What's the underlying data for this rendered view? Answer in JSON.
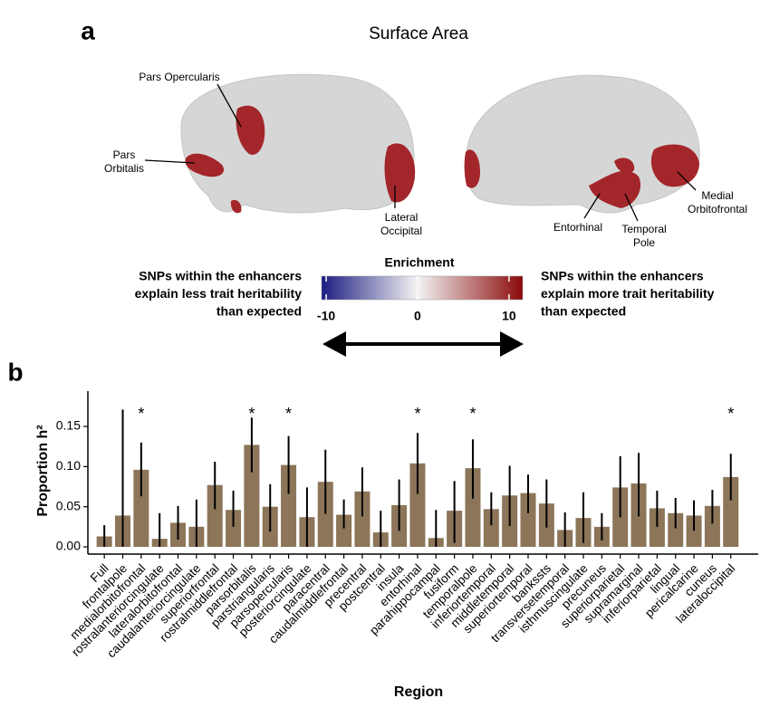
{
  "panel_a": {
    "panel_label": "a",
    "title": "Surface Area",
    "brain_labels": [
      [
        "Pars Opercularis"
      ],
      [
        "Pars",
        "Orbitalis"
      ],
      [
        "Lateral",
        "Occipital"
      ],
      [
        "Entorhinal"
      ],
      [
        "Temporal",
        "Pole"
      ],
      [
        "Medial",
        "Orbitofrontal"
      ]
    ],
    "legend": {
      "title": "Enrichment",
      "left_text": [
        "SNPs within the enhancers",
        "explain less trait heritability",
        "than expected"
      ],
      "right_text": [
        "SNPs within the enhancers",
        "explain more trait heritability",
        "than expected"
      ],
      "clim": [
        -10.5,
        11.5
      ],
      "ticks": [
        -10,
        0,
        10
      ],
      "colors": [
        "#1c1c80",
        "#f4f4f4",
        "#8b0a0a"
      ]
    }
  },
  "chart_data": {
    "type": "bar",
    "panel_label": "b",
    "x_label": "Region",
    "y_label": "Proportion h²",
    "categories": [
      "Full",
      "frontalpole",
      "medialorbitofrontal",
      "rostralanteriorcingulate",
      "lateralorbitofrontal",
      "caudalanteriorcingulate",
      "superiorfrontal",
      "rostralmiddlefrontal",
      "parsorbitalis",
      "parstriangularis",
      "parsopercularis",
      "posteriorcingulate",
      "paracentral",
      "caudalmiddlefrontal",
      "precentral",
      "postcentral",
      "insula",
      "entorhinal",
      "parahippocampal",
      "fusiform",
      "temporalpole",
      "inferiortemporal",
      "middletemporal",
      "superiortemporal",
      "bankssts",
      "transversetemporal",
      "isthmuscingulate",
      "precuneus",
      "superiorparietal",
      "supramarginal",
      "inferiorparietal",
      "lingual",
      "pericalcarine",
      "cuneus",
      "lateraloccipital"
    ],
    "values": [
      0.013,
      0.039,
      0.096,
      0.01,
      0.03,
      0.025,
      0.077,
      0.046,
      0.127,
      0.05,
      0.102,
      0.037,
      0.081,
      0.04,
      0.069,
      0.018,
      0.052,
      0.104,
      0.011,
      0.045,
      0.098,
      0.047,
      0.064,
      0.067,
      0.054,
      0.021,
      0.036,
      0.025,
      0.074,
      0.079,
      0.048,
      0.042,
      0.039,
      0.051,
      0.087
    ],
    "lower": [
      0.0,
      0.0,
      0.063,
      0.0,
      0.009,
      0.0,
      0.047,
      0.025,
      0.093,
      0.019,
      0.066,
      0.0,
      0.041,
      0.023,
      0.038,
      0.0,
      0.02,
      0.066,
      0.0,
      0.005,
      0.06,
      0.027,
      0.026,
      0.042,
      0.024,
      0.0,
      0.005,
      0.008,
      0.037,
      0.038,
      0.025,
      0.023,
      0.02,
      0.029,
      0.058
    ],
    "upper": [
      0.027,
      0.171,
      0.13,
      0.042,
      0.051,
      0.059,
      0.106,
      0.07,
      0.161,
      0.078,
      0.138,
      0.074,
      0.121,
      0.059,
      0.099,
      0.045,
      0.084,
      0.142,
      0.046,
      0.082,
      0.134,
      0.068,
      0.101,
      0.09,
      0.084,
      0.043,
      0.068,
      0.042,
      0.113,
      0.117,
      0.07,
      0.061,
      0.058,
      0.071,
      0.116
    ],
    "significance": [
      null,
      null,
      "*",
      null,
      null,
      null,
      null,
      null,
      "*",
      null,
      "*",
      null,
      null,
      null,
      null,
      null,
      null,
      "*",
      null,
      null,
      "*",
      null,
      null,
      null,
      null,
      null,
      null,
      null,
      null,
      null,
      null,
      null,
      null,
      null,
      "*"
    ],
    "color": "#8c7558",
    "error_color": "#000000",
    "ylim": [
      -0.009,
      0.194
    ],
    "yticks": [
      {
        "value": 0,
        "label": "0.00"
      },
      {
        "value": 0.05,
        "label": "0.05"
      },
      {
        "value": 0.1,
        "label": "0.10"
      },
      {
        "value": 0.15,
        "label": "0.15"
      }
    ],
    "grid": false
  }
}
